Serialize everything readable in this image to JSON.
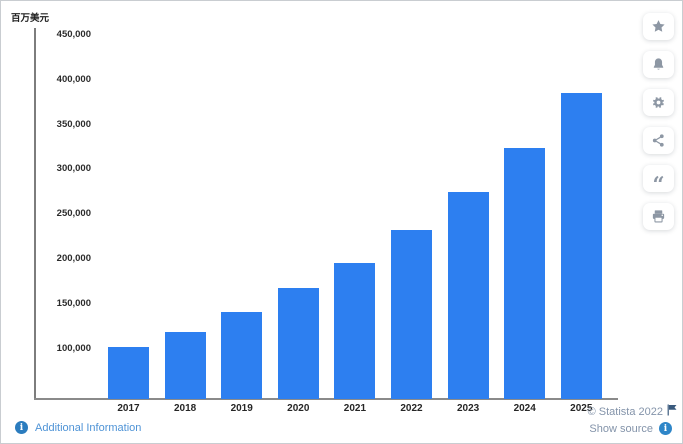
{
  "chart_data": {
    "type": "bar",
    "title": "",
    "xlabel": "",
    "ylabel": "百万美元",
    "categories": [
      "2017",
      "2018",
      "2019",
      "2020",
      "2021",
      "2022",
      "2023",
      "2024",
      "2025"
    ],
    "values": [
      101500,
      119000,
      140500,
      167500,
      195500,
      232500,
      275000,
      324500,
      385000
    ],
    "ylim": [
      44000,
      457000
    ],
    "yticks": [
      100000,
      150000,
      200000,
      250000,
      300000,
      350000,
      400000,
      450000
    ],
    "ytick_labels": [
      "100,000",
      "150,000",
      "200,000",
      "250,000",
      "300,000",
      "350,000",
      "400,000",
      "450,000"
    ],
    "grid": false,
    "legend": false,
    "bar_color": "#2d7ff0"
  },
  "sidebar": {
    "buttons": [
      {
        "name": "favorite",
        "icon": "star-icon"
      },
      {
        "name": "alert",
        "icon": "bell-icon"
      },
      {
        "name": "settings",
        "icon": "gear-icon"
      },
      {
        "name": "share",
        "icon": "share-icon"
      },
      {
        "name": "cite",
        "icon": "quote-icon"
      },
      {
        "name": "print",
        "icon": "printer-icon"
      }
    ]
  },
  "footer": {
    "additional_information": "Additional Information",
    "copyright": "© Statista 2022",
    "show_source": "Show source"
  },
  "colors": {
    "bar": "#2d7ff0",
    "axis": "#7d7d7d",
    "link_blue": "#4e93d6",
    "muted_blue_gray": "#8494aa",
    "info_icon_blue": "#2b7cbe",
    "toolbar_icon_gray": "#8d97a4",
    "flag_blue": "#3a5a7d"
  }
}
